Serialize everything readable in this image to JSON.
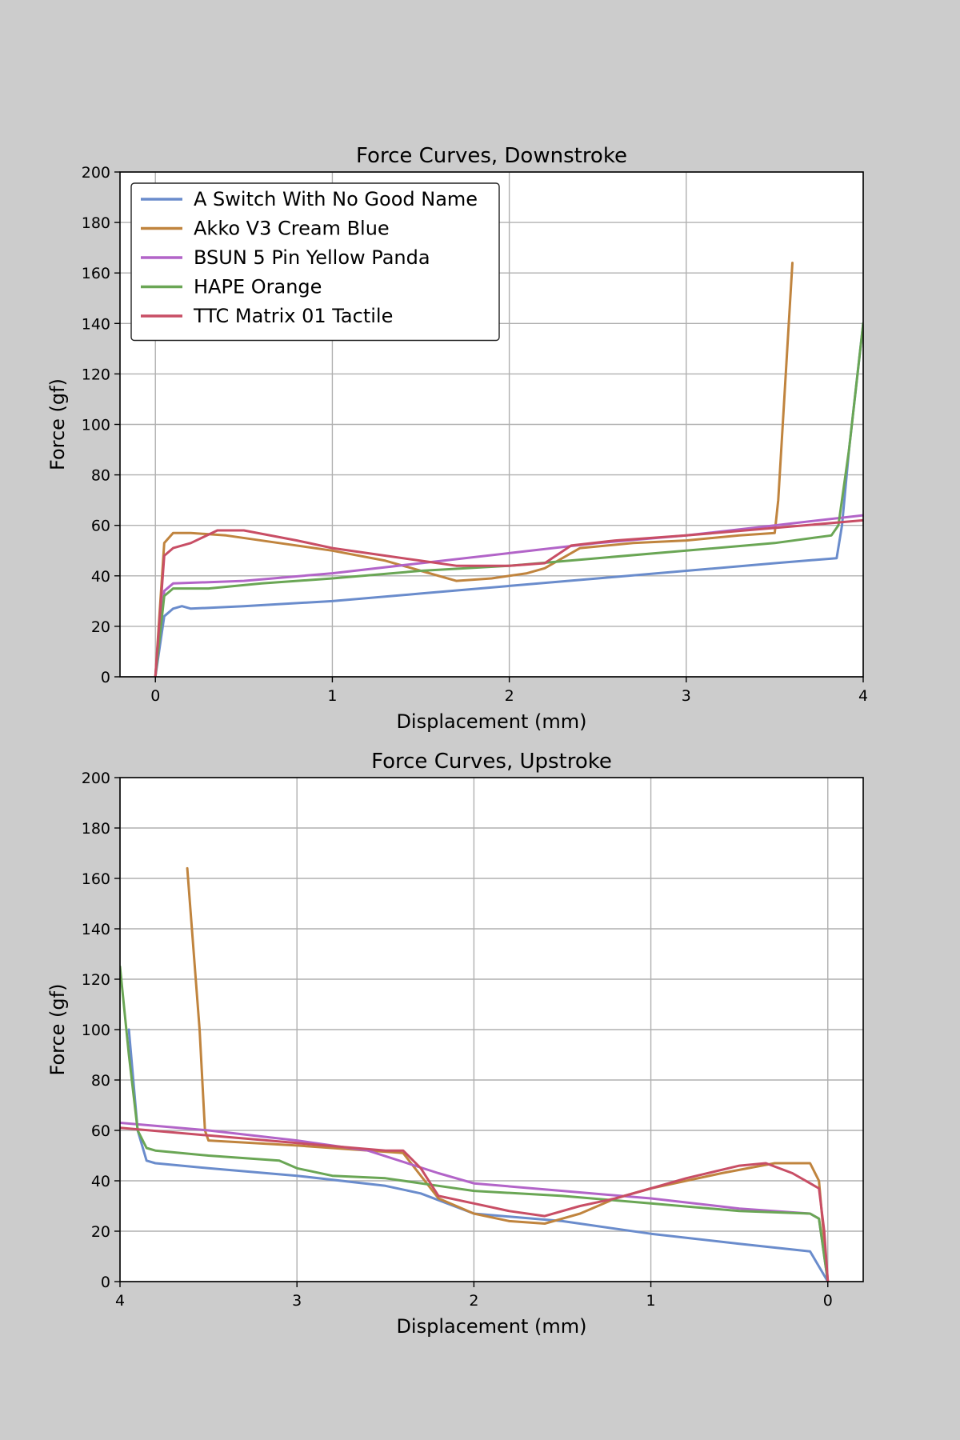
{
  "colors": {
    "A Switch With No Good Name": "#6a8ccc",
    "Akko V3 Cream Blue": "#c0843e",
    "BSUN 5 Pin Yellow Panda": "#b264c8",
    "HAPE Orange": "#6aa655",
    "TTC Matrix 01 Tactile": "#c84e65"
  },
  "chart_data": [
    {
      "type": "line",
      "title": "Force Curves, Downstroke",
      "xlabel": "Displacement (mm)",
      "ylabel": "Force (gf)",
      "xlim": [
        -0.2,
        4
      ],
      "ylim": [
        0,
        200
      ],
      "x_reversed": false,
      "xticks": [
        0,
        1,
        2,
        3,
        4
      ],
      "yticks": [
        0,
        20,
        40,
        60,
        80,
        100,
        120,
        140,
        160,
        180,
        200
      ],
      "grid": true,
      "legend": "top-left",
      "series": [
        {
          "name": "A Switch With No Good Name",
          "x": [
            0,
            0.05,
            0.1,
            0.15,
            0.2,
            0.5,
            1.0,
            1.5,
            2.0,
            2.5,
            3.0,
            3.5,
            3.85,
            3.88,
            3.92,
            4.0
          ],
          "y": [
            0,
            24,
            27,
            28,
            27,
            28,
            30,
            33,
            36,
            39,
            42,
            45,
            47,
            60,
            90,
            140
          ]
        },
        {
          "name": "Akko V3 Cream Blue",
          "x": [
            0,
            0.05,
            0.1,
            0.2,
            0.4,
            0.7,
            1.0,
            1.3,
            1.5,
            1.7,
            1.9,
            2.1,
            2.2,
            2.4,
            2.7,
            3.0,
            3.3,
            3.5,
            3.52,
            3.6
          ],
          "y": [
            0,
            53,
            57,
            57,
            56,
            53,
            50,
            46,
            42,
            38,
            39,
            41,
            43,
            51,
            53,
            54,
            56,
            57,
            70,
            164
          ]
        },
        {
          "name": "BSUN 5 Pin Yellow Panda",
          "x": [
            0,
            0.05,
            0.1,
            0.5,
            1.0,
            1.5,
            2.0,
            2.5,
            3.0,
            3.5,
            4.0
          ],
          "y": [
            0,
            34,
            37,
            38,
            41,
            45,
            49,
            53,
            56,
            60,
            64
          ]
        },
        {
          "name": "HAPE Orange",
          "x": [
            0,
            0.05,
            0.1,
            0.3,
            0.6,
            1.0,
            1.5,
            2.0,
            2.5,
            3.0,
            3.5,
            3.82,
            3.86,
            3.92,
            4.0
          ],
          "y": [
            0,
            32,
            35,
            35,
            37,
            39,
            42,
            44,
            47,
            50,
            53,
            56,
            60,
            90,
            140
          ]
        },
        {
          "name": "TTC Matrix 01 Tactile",
          "x": [
            0,
            0.05,
            0.1,
            0.2,
            0.35,
            0.5,
            0.8,
            1.0,
            1.3,
            1.5,
            1.7,
            2.0,
            2.2,
            2.35,
            2.6,
            3.0,
            3.5,
            4.0
          ],
          "y": [
            0,
            48,
            51,
            53,
            58,
            58,
            54,
            51,
            48,
            46,
            44,
            44,
            45,
            52,
            54,
            56,
            59,
            62
          ]
        }
      ]
    },
    {
      "type": "line",
      "title": "Force Curves, Upstroke",
      "xlabel": "Displacement (mm)",
      "ylabel": "Force (gf)",
      "xlim": [
        4,
        -0.2
      ],
      "ylim": [
        0,
        200
      ],
      "x_reversed": true,
      "xticks": [
        4,
        3,
        2,
        1,
        0
      ],
      "yticks": [
        0,
        20,
        40,
        60,
        80,
        100,
        120,
        140,
        160,
        180,
        200
      ],
      "grid": true,
      "legend": "none",
      "series": [
        {
          "name": "A Switch With No Good Name",
          "x": [
            3.95,
            3.9,
            3.85,
            3.8,
            3.5,
            3.0,
            2.5,
            2.3,
            2.0,
            1.5,
            1.0,
            0.5,
            0.1,
            0.05,
            0
          ],
          "y": [
            100,
            60,
            48,
            47,
            45,
            42,
            38,
            35,
            27,
            24,
            19,
            15,
            12,
            6,
            0
          ]
        },
        {
          "name": "Akko V3 Cream Blue",
          "x": [
            3.62,
            3.55,
            3.52,
            3.5,
            3.0,
            2.4,
            2.2,
            2.0,
            1.8,
            1.6,
            1.4,
            1.2,
            1.0,
            0.6,
            0.3,
            0.1,
            0.05,
            0
          ],
          "y": [
            164,
            100,
            60,
            56,
            54,
            51,
            33,
            27,
            24,
            23,
            27,
            33,
            37,
            43,
            47,
            47,
            40,
            0
          ]
        },
        {
          "name": "BSUN 5 Pin Yellow Panda",
          "x": [
            4.0,
            3.5,
            3.0,
            2.6,
            2.2,
            2.0,
            1.5,
            1.0,
            0.5,
            0.1,
            0.05,
            0
          ],
          "y": [
            63,
            60,
            56,
            52,
            43,
            39,
            36,
            33,
            29,
            27,
            25,
            0
          ]
        },
        {
          "name": "HAPE Orange",
          "x": [
            4.0,
            3.95,
            3.9,
            3.85,
            3.8,
            3.5,
            3.1,
            3.0,
            2.8,
            2.5,
            2.2,
            2.0,
            1.5,
            1.0,
            0.5,
            0.1,
            0.05,
            0
          ],
          "y": [
            125,
            90,
            60,
            53,
            52,
            50,
            48,
            45,
            42,
            41,
            38,
            36,
            34,
            31,
            28,
            27,
            25,
            0
          ]
        },
        {
          "name": "TTC Matrix 01 Tactile",
          "x": [
            4.0,
            3.5,
            3.0,
            2.5,
            2.4,
            2.3,
            2.2,
            2.0,
            1.8,
            1.6,
            1.4,
            1.2,
            1.0,
            0.8,
            0.5,
            0.35,
            0.2,
            0.05,
            0.02,
            0
          ],
          "y": [
            61,
            58,
            55,
            52,
            52,
            45,
            34,
            31,
            28,
            26,
            30,
            33,
            37,
            41,
            46,
            47,
            43,
            37,
            20,
            0
          ]
        }
      ]
    }
  ]
}
